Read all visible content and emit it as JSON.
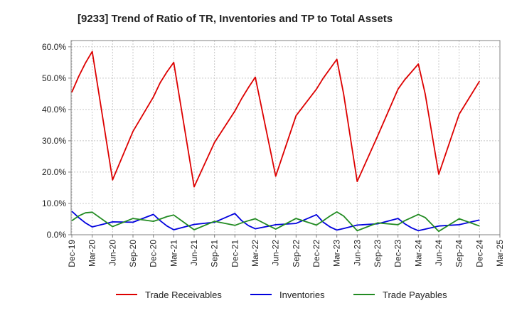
{
  "chart_data": {
    "type": "line",
    "title": "[9233]  Trend of Ratio of TR, Inventories and TP to Total Assets",
    "xlabel": "",
    "ylabel": "",
    "ylim": [
      0,
      62
    ],
    "y_ticks": [
      0,
      10,
      20,
      30,
      40,
      50,
      60
    ],
    "y_tick_labels": [
      "0.0%",
      "10.0%",
      "20.0%",
      "30.0%",
      "40.0%",
      "50.0%",
      "60.0%"
    ],
    "x_ticks": [
      "Dec-19",
      "Mar-20",
      "Jun-20",
      "Sep-20",
      "Dec-20",
      "Mar-21",
      "Jun-21",
      "Sep-21",
      "Dec-21",
      "Mar-22",
      "Jun-22",
      "Sep-22",
      "Dec-22",
      "Mar-23",
      "Jun-23",
      "Sep-23",
      "Dec-23",
      "Mar-24",
      "Jun-24",
      "Sep-24",
      "Dec-24",
      "Mar-25"
    ],
    "grid": true,
    "legend_position": "bottom",
    "x": [
      "2019-12",
      "2020-01",
      "2020-02",
      "2020-03",
      "2020-06",
      "2020-09",
      "2020-12",
      "2021-01",
      "2021-02",
      "2021-03",
      "2021-06",
      "2021-09",
      "2021-12",
      "2022-01",
      "2022-02",
      "2022-03",
      "2022-06",
      "2022-09",
      "2022-12",
      "2023-01",
      "2023-02",
      "2023-03",
      "2023-04",
      "2023-06",
      "2023-09",
      "2023-12",
      "2024-01",
      "2024-02",
      "2024-03",
      "2024-04",
      "2024-06",
      "2024-09",
      "2024-12"
    ],
    "series": [
      {
        "name": "Trade Receivables",
        "color": "#dd0000",
        "values": [
          45.5,
          50.5,
          54.8,
          58.5,
          17.5,
          33.0,
          44.0,
          48.5,
          52.0,
          55.0,
          15.3,
          29.5,
          39.5,
          43.5,
          47.0,
          50.3,
          18.7,
          38.0,
          46.5,
          50.0,
          53.0,
          56.0,
          45.0,
          17.0,
          31.5,
          46.5,
          49.5,
          52.0,
          54.5,
          45.0,
          19.3,
          38.5,
          49.0
        ]
      },
      {
        "name": "Inventories",
        "color": "#0000dd",
        "values": [
          7.5,
          5.5,
          3.8,
          2.5,
          4.1,
          4.0,
          6.5,
          4.5,
          2.8,
          1.6,
          3.3,
          4.0,
          6.8,
          4.5,
          2.9,
          1.9,
          3.2,
          3.6,
          6.4,
          4.0,
          2.5,
          1.5,
          2.0,
          3.1,
          3.5,
          5.2,
          3.5,
          2.2,
          1.3,
          1.8,
          2.8,
          3.2,
          4.7
        ]
      },
      {
        "name": "Trade Payables",
        "color": "#228b22",
        "values": [
          4.5,
          6.0,
          7.0,
          7.2,
          2.6,
          5.2,
          4.3,
          5.0,
          5.8,
          6.3,
          1.6,
          4.3,
          3.0,
          3.8,
          4.5,
          5.1,
          1.8,
          5.2,
          3.1,
          4.5,
          6.0,
          7.3,
          6.0,
          1.3,
          3.8,
          3.2,
          4.5,
          5.5,
          6.5,
          5.5,
          1.1,
          5.1,
          2.8
        ]
      }
    ]
  }
}
